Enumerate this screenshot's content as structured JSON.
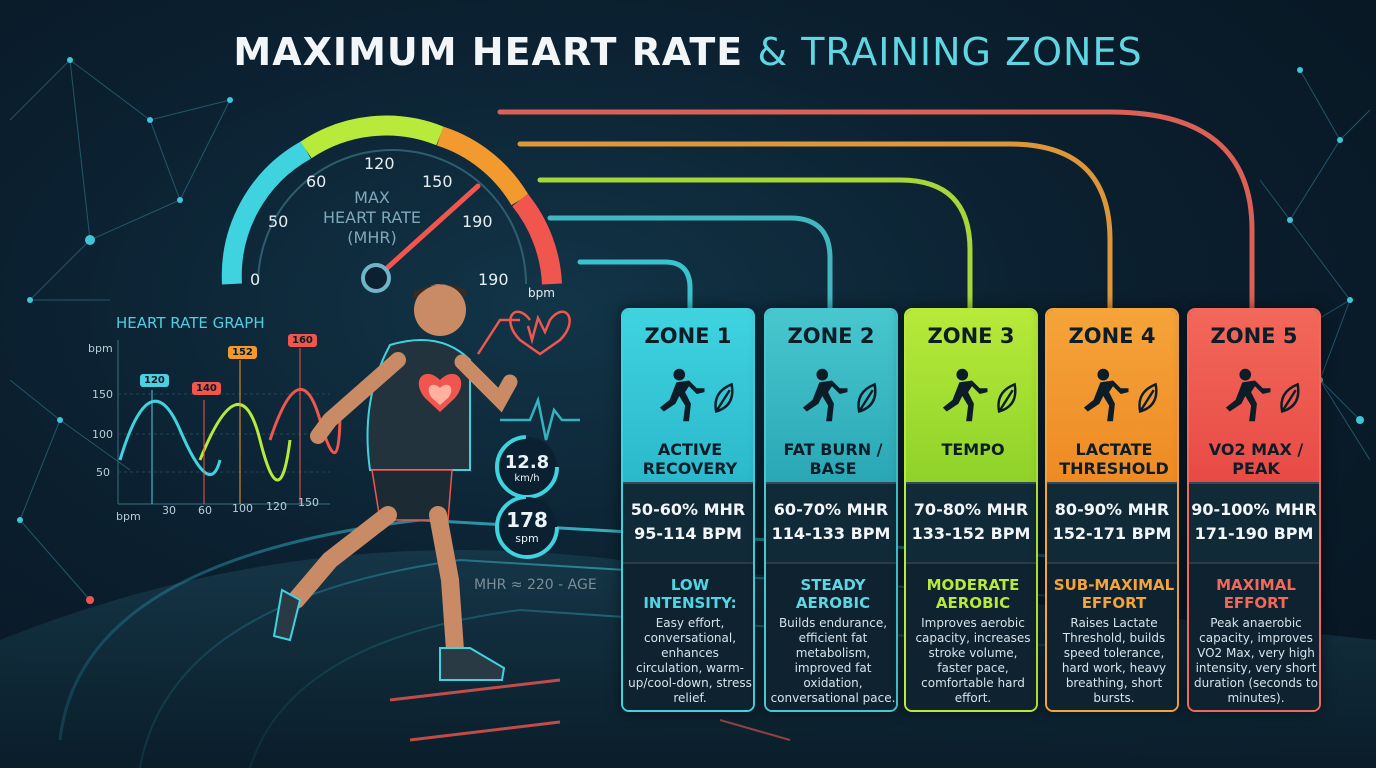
{
  "title": {
    "part1": "MAXIMUM HEART RATE",
    "part2": "& TRAINING ZONES"
  },
  "gauge": {
    "title_line1": "MAX",
    "title_line2": "HEART RATE",
    "title_line3": "(MHR)",
    "ticks": [
      "0",
      "50",
      "60",
      "120",
      "150",
      "190",
      "190"
    ],
    "unit": "bpm",
    "colors": [
      "#3fd3e0",
      "#b7ea3a",
      "#f29a2e",
      "#f0564e"
    ]
  },
  "heart_rate_graph": {
    "title": "HEART RATE GRAPH",
    "y_unit": "bpm",
    "x_unit": "bpm",
    "y_ticks": [
      "150",
      "100",
      "50"
    ],
    "x_ticks": [
      "30",
      "60",
      "100",
      "120",
      "150"
    ],
    "callouts": [
      {
        "label": "120",
        "color": "#4fd0e2"
      },
      {
        "label": "140",
        "color": "#f0564e"
      },
      {
        "label": "152",
        "color": "#f29a2e"
      },
      {
        "label": "160",
        "color": "#f0564e"
      }
    ]
  },
  "stats": {
    "speed_value": "12.8",
    "speed_unit": "km/h",
    "cadence_value": "178",
    "cadence_unit": "spm"
  },
  "formula": "MHR ≈ 220 - AGE",
  "zones": [
    {
      "name": "ZONE 1",
      "label": "ACTIVE RECOVERY",
      "pct": "50-60% MHR",
      "bpm": "95-114 BPM",
      "intensity": "LOW INTENSITY:",
      "desc": "Easy effort, conversational, enhances circulation, warm-up/cool-down, stress relief.",
      "color": "#3fd3e0",
      "color2": "#2bb8cc",
      "intensity_color": "#4fd6e6",
      "icon": "walking-person-leaf-icon"
    },
    {
      "name": "ZONE 2",
      "label": "FAT BURN / BASE",
      "pct": "60-70% MHR",
      "bpm": "114-133 BPM",
      "intensity": "STEADY AEROBIC",
      "desc": "Builds endurance, efficient fat metabolism, improved fat oxidation, conversational pace.",
      "color": "#48c7cf",
      "color2": "#2aa7b5",
      "intensity_color": "#5fd6e2",
      "icon": "jogging-person-fat-drop-icon"
    },
    {
      "name": "ZONE 3",
      "label": "TEMPO",
      "pct": "70-80% MHR",
      "bpm": "133-152 BPM",
      "intensity": "MODERATE AEROBIC",
      "desc": "Improves aerobic capacity, increases stroke volume, faster pace, comfortable hard effort.",
      "color": "#b7ea3a",
      "color2": "#8fd22a",
      "intensity_color": "#b7ea3a",
      "icon": "running-person-sweat-icon"
    },
    {
      "name": "ZONE 4",
      "label": "LACTATE THRESHOLD",
      "pct": "80-90% MHR",
      "bpm": "152-171 BPM",
      "intensity": "SUB-MAXIMAL EFFORT",
      "desc": "Raises Lactate Threshold, builds speed tolerance, hard work, heavy breathing, short bursts.",
      "color": "#f5a43a",
      "color2": "#ee8a24",
      "intensity_color": "#f5a43a",
      "icon": "sprinting-person-muscle-icon"
    },
    {
      "name": "ZONE 5",
      "label": "VO2 MAX / PEAK",
      "pct": "90-100% MHR",
      "bpm": "171-190 BPM",
      "intensity": "MAXIMAL EFFORT",
      "desc": "Peak anaerobic capacity, improves VO2 Max, very high intensity, very short duration (seconds to minutes).",
      "color": "#f2685a",
      "color2": "#e84a45",
      "intensity_color": "#f2685a",
      "icon": "sprinting-person-flame-icon"
    }
  ]
}
